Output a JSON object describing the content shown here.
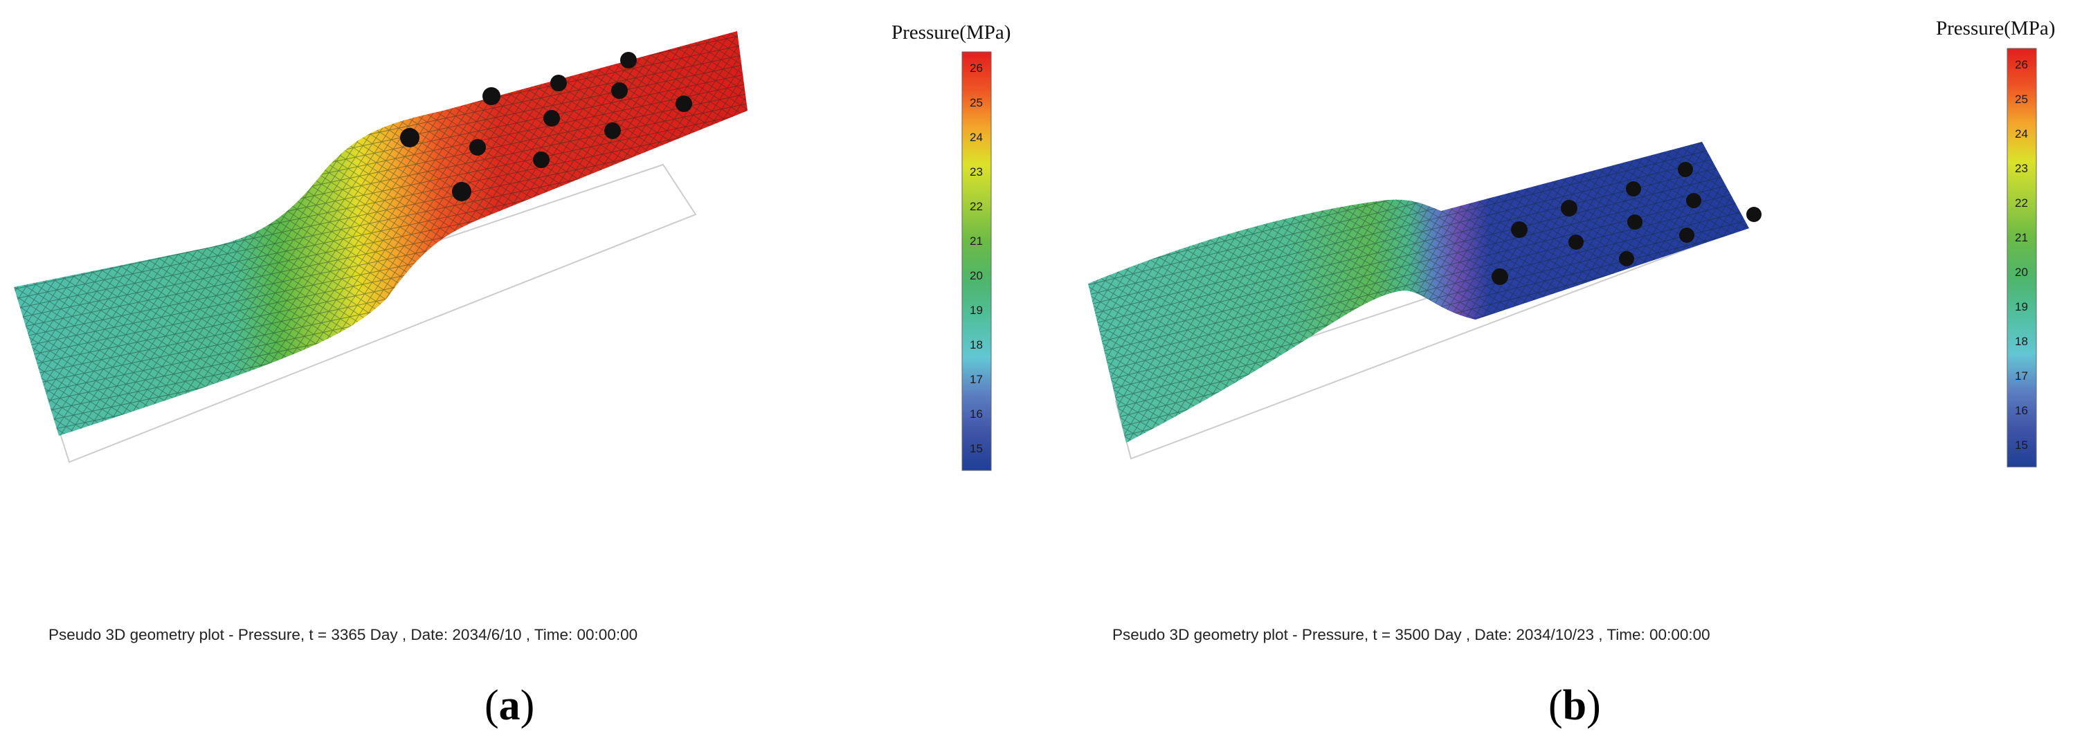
{
  "colorbar": {
    "title": "Pressure(MPa)",
    "ticks": [
      "26",
      "25",
      "24",
      "23",
      "22",
      "21",
      "20",
      "19",
      "18",
      "17",
      "16",
      "15"
    ],
    "colors": {
      "26": "#e31e1e",
      "25": "#ee5524",
      "24": "#f3a52b",
      "23": "#dbe22a",
      "22": "#a6cf3a",
      "21": "#6dbb45",
      "20": "#4db56c",
      "19": "#52bfa0",
      "18": "#63c6d4",
      "17": "#5c7ec2",
      "16": "#3f54a6",
      "15": "#1f3f97"
    }
  },
  "panels": [
    {
      "id": "a",
      "caption": "Pseudo 3D geometry plot - Pressure, t = 3365 Day , Date: 2034/6/10 , Time: 00:00:00",
      "label_open": "(",
      "label_letter": "a",
      "label_close": ")",
      "colors": {
        "low_zone": "#52bfae",
        "transition": "#e4dc2a",
        "high_zone": "#dd2a1e"
      }
    },
    {
      "id": "b",
      "caption": "Pseudo 3D geometry plot - Pressure, t = 3500 Day , Date: 2034/10/23 , Time: 00:00:00",
      "label_open": "(",
      "label_letter": "b",
      "label_close": ")",
      "colors": {
        "low_zone": "#55c0a8",
        "transition": "#6a4fb0",
        "high_zone": "#2a3fa2"
      }
    }
  ]
}
